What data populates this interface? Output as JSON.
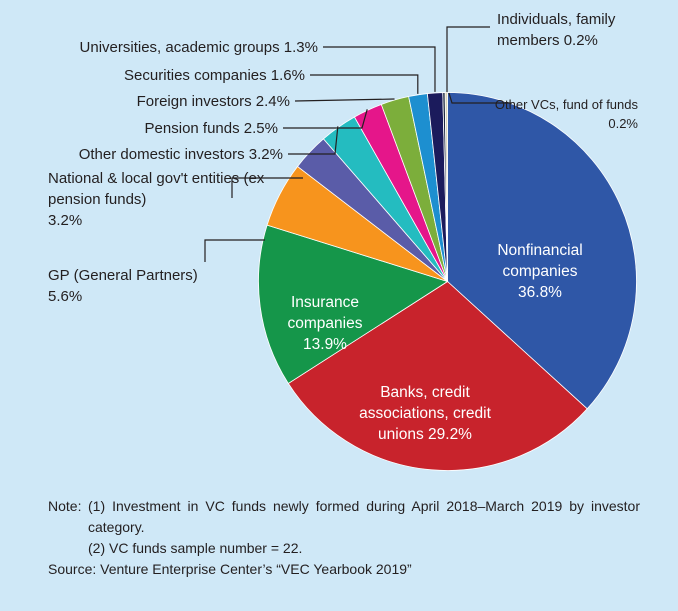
{
  "chart_data": {
    "type": "pie",
    "categories": [
      "Nonfinancial companies",
      "Banks, credit associations, credit unions",
      "Insurance companies",
      "GP (General Partners)",
      "National & local gov't entities (ex pension funds)",
      "Other domestic investors",
      "Pension funds",
      "Foreign investors",
      "Securities companies",
      "Universities, academic groups",
      "Individuals, family members",
      "Other VCs, fund of funds"
    ],
    "values": [
      36.8,
      29.2,
      13.9,
      5.6,
      3.2,
      3.2,
      2.5,
      2.4,
      1.6,
      1.3,
      0.2,
      0.2
    ],
    "value_labels": [
      "36.8%",
      "29.2%",
      "13.9%",
      "5.6%",
      "3.2%",
      "3.2%",
      "2.5%",
      "2.4%",
      "1.6%",
      "1.3%",
      "0.2%",
      "0.2%"
    ],
    "colors": [
      "#2f57a7",
      "#c8232c",
      "#15964a",
      "#f7941d",
      "#5a5ca8",
      "#24bcc0",
      "#e5168a",
      "#7cae3b",
      "#1d8fd0",
      "#1b1b5c",
      "#1f2a44",
      "#d9d4b8"
    ],
    "note_label": "Note:",
    "notes": [
      "(1) Investment in VC funds newly formed during April 2018–March 2019 by investor category.",
      "(2) VC funds sample number = 22."
    ],
    "source": "Source: Venture Enterprise Center’s “VEC Yearbook 2019”"
  }
}
